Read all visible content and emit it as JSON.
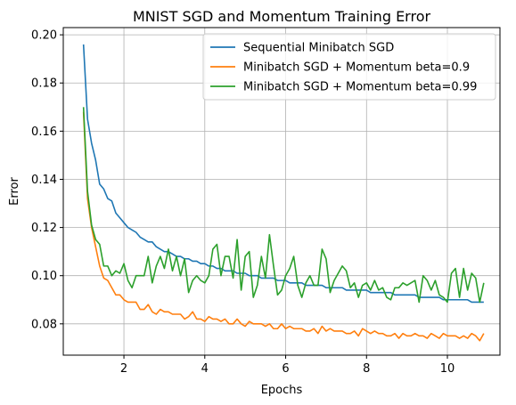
{
  "chart_data": {
    "type": "line",
    "title": "MNIST SGD and Momentum Training Error",
    "xlabel": "Epochs",
    "ylabel": "Error",
    "xlim": [
      0.5,
      11.3
    ],
    "ylim": [
      0.067,
      0.203
    ],
    "xticks": [
      2,
      4,
      6,
      8,
      10
    ],
    "yticks": [
      0.08,
      0.1,
      0.12,
      0.14,
      0.16,
      0.18,
      0.2
    ],
    "ytick_labels": [
      "0.08",
      "0.10",
      "0.12",
      "0.14",
      "0.16",
      "0.18",
      "0.20"
    ],
    "grid": true,
    "legend_position": "top-right",
    "series": [
      {
        "name": "Sequential Minibatch SGD",
        "color": "#1f77b4",
        "x_start": 1.0,
        "x_end": 10.9,
        "values": [
          0.196,
          0.165,
          0.155,
          0.148,
          0.138,
          0.136,
          0.132,
          0.131,
          0.126,
          0.124,
          0.122,
          0.12,
          0.119,
          0.118,
          0.116,
          0.115,
          0.114,
          0.114,
          0.112,
          0.111,
          0.11,
          0.11,
          0.109,
          0.108,
          0.108,
          0.107,
          0.107,
          0.106,
          0.106,
          0.105,
          0.105,
          0.104,
          0.104,
          0.103,
          0.103,
          0.102,
          0.102,
          0.102,
          0.101,
          0.101,
          0.101,
          0.1,
          0.1,
          0.1,
          0.099,
          0.099,
          0.099,
          0.099,
          0.098,
          0.098,
          0.098,
          0.097,
          0.097,
          0.097,
          0.097,
          0.096,
          0.096,
          0.096,
          0.096,
          0.096,
          0.095,
          0.095,
          0.095,
          0.095,
          0.095,
          0.094,
          0.094,
          0.094,
          0.094,
          0.094,
          0.094,
          0.093,
          0.093,
          0.093,
          0.093,
          0.093,
          0.093,
          0.092,
          0.092,
          0.092,
          0.092,
          0.092,
          0.092,
          0.091,
          0.091,
          0.091,
          0.091,
          0.091,
          0.091,
          0.09,
          0.09,
          0.09,
          0.09,
          0.09,
          0.09,
          0.09,
          0.089,
          0.089,
          0.089,
          0.089
        ]
      },
      {
        "name": "Minibatch SGD + Momentum beta=0.9",
        "color": "#ff7f0e",
        "x_start": 1.0,
        "x_end": 10.9,
        "values": [
          0.168,
          0.132,
          0.12,
          0.112,
          0.104,
          0.099,
          0.098,
          0.095,
          0.092,
          0.092,
          0.09,
          0.089,
          0.089,
          0.089,
          0.086,
          0.086,
          0.088,
          0.085,
          0.084,
          0.086,
          0.085,
          0.085,
          0.084,
          0.084,
          0.084,
          0.082,
          0.083,
          0.085,
          0.082,
          0.082,
          0.081,
          0.083,
          0.082,
          0.082,
          0.081,
          0.082,
          0.08,
          0.08,
          0.082,
          0.08,
          0.079,
          0.081,
          0.08,
          0.08,
          0.08,
          0.079,
          0.08,
          0.078,
          0.078,
          0.08,
          0.078,
          0.079,
          0.078,
          0.078,
          0.078,
          0.077,
          0.077,
          0.078,
          0.076,
          0.079,
          0.077,
          0.078,
          0.077,
          0.077,
          0.077,
          0.076,
          0.076,
          0.077,
          0.075,
          0.078,
          0.077,
          0.076,
          0.077,
          0.076,
          0.076,
          0.075,
          0.075,
          0.076,
          0.074,
          0.076,
          0.075,
          0.075,
          0.076,
          0.075,
          0.075,
          0.074,
          0.076,
          0.075,
          0.074,
          0.076,
          0.075,
          0.075,
          0.075,
          0.074,
          0.075,
          0.074,
          0.076,
          0.075,
          0.073,
          0.076
        ]
      },
      {
        "name": "Minibatch SGD + Momentum beta=0.99",
        "color": "#2ca02c",
        "x_start": 1.0,
        "x_end": 10.9,
        "values": [
          0.17,
          0.135,
          0.121,
          0.115,
          0.113,
          0.104,
          0.104,
          0.1,
          0.102,
          0.101,
          0.105,
          0.098,
          0.095,
          0.1,
          0.1,
          0.1,
          0.108,
          0.097,
          0.104,
          0.108,
          0.103,
          0.111,
          0.102,
          0.108,
          0.1,
          0.107,
          0.093,
          0.098,
          0.1,
          0.098,
          0.097,
          0.1,
          0.111,
          0.113,
          0.1,
          0.108,
          0.108,
          0.099,
          0.115,
          0.094,
          0.108,
          0.11,
          0.091,
          0.096,
          0.108,
          0.099,
          0.117,
          0.104,
          0.092,
          0.094,
          0.1,
          0.103,
          0.108,
          0.096,
          0.091,
          0.097,
          0.1,
          0.096,
          0.096,
          0.111,
          0.107,
          0.093,
          0.098,
          0.101,
          0.104,
          0.102,
          0.095,
          0.097,
          0.091,
          0.096,
          0.097,
          0.094,
          0.098,
          0.094,
          0.095,
          0.091,
          0.09,
          0.095,
          0.095,
          0.097,
          0.096,
          0.097,
          0.098,
          0.089,
          0.1,
          0.098,
          0.094,
          0.098,
          0.092,
          0.091,
          0.089,
          0.101,
          0.103,
          0.091,
          0.103,
          0.094,
          0.101,
          0.099,
          0.089,
          0.097
        ]
      }
    ]
  }
}
